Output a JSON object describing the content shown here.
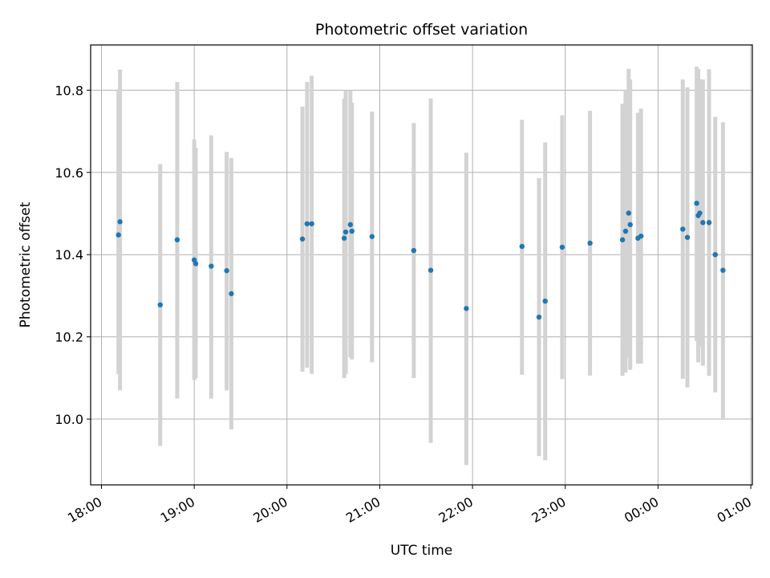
{
  "chart_data": {
    "type": "scatter",
    "title": "Photometric offset variation",
    "xlabel": "UTC time",
    "ylabel": "Photometric offset",
    "x_axis_type": "time",
    "xlim": [
      "17:53",
      "01:01"
    ],
    "ylim": [
      9.84,
      10.91
    ],
    "x_ticks": [
      "18:00",
      "19:00",
      "20:00",
      "21:00",
      "22:00",
      "23:00",
      "00:00",
      "01:00"
    ],
    "y_ticks": [
      "10.0",
      "10.2",
      "10.4",
      "10.6",
      "10.8"
    ],
    "grid": true,
    "legend": "none",
    "colors": {
      "points": "#1f77b4",
      "error_bars": "#d3d3d3",
      "grid": "#b0b0b0"
    },
    "series": [
      {
        "points": [
          {
            "x": "18:11",
            "y": 10.448,
            "y_low": 10.11,
            "y_high": 10.8
          },
          {
            "x": "18:12",
            "y": 10.48,
            "y_low": 10.07,
            "y_high": 10.85
          },
          {
            "x": "18:38",
            "y": 10.278,
            "y_low": 9.935,
            "y_high": 10.62
          },
          {
            "x": "18:49",
            "y": 10.436,
            "y_low": 10.05,
            "y_high": 10.82
          },
          {
            "x": "19:00",
            "y": 10.387,
            "y_low": 10.095,
            "y_high": 10.68
          },
          {
            "x": "19:01",
            "y": 10.378,
            "y_low": 10.1,
            "y_high": 10.66
          },
          {
            "x": "19:11",
            "y": 10.372,
            "y_low": 10.05,
            "y_high": 10.69
          },
          {
            "x": "19:21",
            "y": 10.361,
            "y_low": 10.07,
            "y_high": 10.65
          },
          {
            "x": "19:24",
            "y": 10.305,
            "y_low": 9.975,
            "y_high": 10.635
          },
          {
            "x": "20:10",
            "y": 10.438,
            "y_low": 10.115,
            "y_high": 10.76
          },
          {
            "x": "20:13",
            "y": 10.475,
            "y_low": 10.125,
            "y_high": 10.82
          },
          {
            "x": "20:16",
            "y": 10.475,
            "y_low": 10.11,
            "y_high": 10.835
          },
          {
            "x": "20:37",
            "y": 10.44,
            "y_low": 10.1,
            "y_high": 10.78
          },
          {
            "x": "20:38",
            "y": 10.455,
            "y_low": 10.11,
            "y_high": 10.8
          },
          {
            "x": "20:41",
            "y": 10.473,
            "y_low": 10.15,
            "y_high": 10.8
          },
          {
            "x": "20:42",
            "y": 10.457,
            "y_low": 10.145,
            "y_high": 10.77
          },
          {
            "x": "20:55",
            "y": 10.444,
            "y_low": 10.138,
            "y_high": 10.748
          },
          {
            "x": "21:22",
            "y": 10.41,
            "y_low": 10.1,
            "y_high": 10.72
          },
          {
            "x": "21:33",
            "y": 10.362,
            "y_low": 9.942,
            "y_high": 10.78
          },
          {
            "x": "21:56",
            "y": 10.269,
            "y_low": 9.888,
            "y_high": 10.648
          },
          {
            "x": "22:32",
            "y": 10.42,
            "y_low": 10.108,
            "y_high": 10.728
          },
          {
            "x": "22:43",
            "y": 10.248,
            "y_low": 9.91,
            "y_high": 10.586
          },
          {
            "x": "22:47",
            "y": 10.287,
            "y_low": 9.9,
            "y_high": 10.673
          },
          {
            "x": "22:58",
            "y": 10.418,
            "y_low": 10.097,
            "y_high": 10.739
          },
          {
            "x": "23:16",
            "y": 10.428,
            "y_low": 10.106,
            "y_high": 10.75
          },
          {
            "x": "23:37",
            "y": 10.436,
            "y_low": 10.105,
            "y_high": 10.767
          },
          {
            "x": "23:39",
            "y": 10.457,
            "y_low": 10.113,
            "y_high": 10.8
          },
          {
            "x": "23:41",
            "y": 10.501,
            "y_low": 10.15,
            "y_high": 10.852
          },
          {
            "x": "23:42",
            "y": 10.473,
            "y_low": 10.12,
            "y_high": 10.826
          },
          {
            "x": "23:47",
            "y": 10.44,
            "y_low": 10.135,
            "y_high": 10.745
          },
          {
            "x": "23:49",
            "y": 10.445,
            "y_low": 10.135,
            "y_high": 10.755
          },
          {
            "x": "00:16",
            "y": 10.462,
            "y_low": 10.098,
            "y_high": 10.826
          },
          {
            "x": "00:19",
            "y": 10.442,
            "y_low": 10.077,
            "y_high": 10.807
          },
          {
            "x": "00:25",
            "y": 10.525,
            "y_low": 10.19,
            "y_high": 10.857
          },
          {
            "x": "00:26",
            "y": 10.495,
            "y_low": 10.138,
            "y_high": 10.852
          },
          {
            "x": "00:27",
            "y": 10.501,
            "y_low": 10.175,
            "y_high": 10.827
          },
          {
            "x": "00:29",
            "y": 10.478,
            "y_low": 10.13,
            "y_high": 10.826
          },
          {
            "x": "00:33",
            "y": 10.478,
            "y_low": 10.105,
            "y_high": 10.851
          },
          {
            "x": "00:37",
            "y": 10.4,
            "y_low": 10.065,
            "y_high": 10.735
          },
          {
            "x": "00:42",
            "y": 10.362,
            "y_low": 10.002,
            "y_high": 10.722
          }
        ]
      }
    ]
  }
}
